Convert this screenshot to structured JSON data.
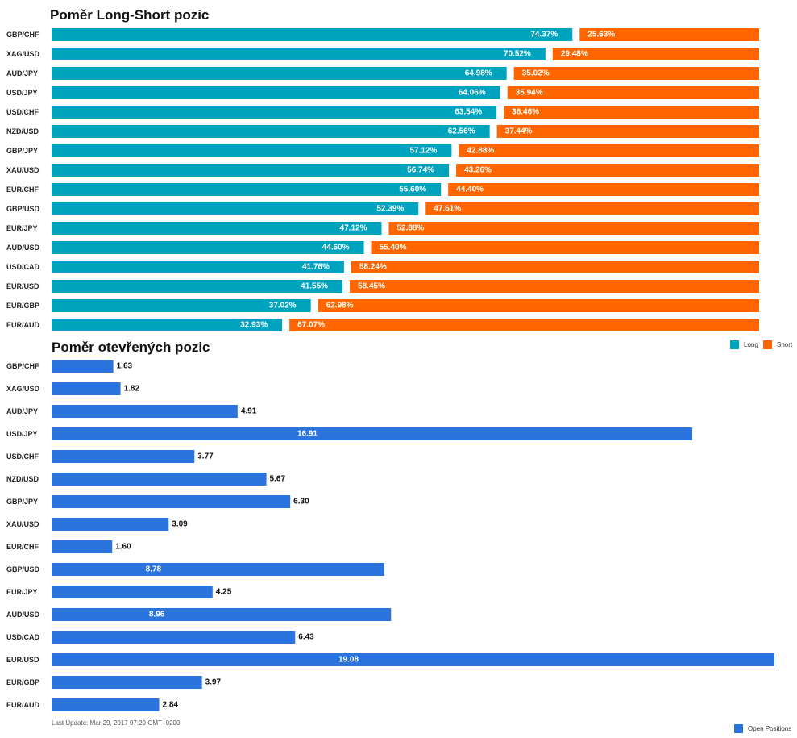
{
  "chart_data": [
    {
      "type": "bar",
      "orientation": "horizontal",
      "stacked": true,
      "title": "Poměr Long-Short pozic",
      "categories": [
        "GBP/CHF",
        "XAG/USD",
        "AUD/JPY",
        "USD/JPY",
        "USD/CHF",
        "NZD/USD",
        "GBP/JPY",
        "XAU/USD",
        "EUR/CHF",
        "GBP/USD",
        "EUR/JPY",
        "AUD/USD",
        "USD/CAD",
        "EUR/USD",
        "EUR/GBP",
        "EUR/AUD"
      ],
      "series": [
        {
          "name": "Long",
          "color": "#00a3bd",
          "values": [
            74.37,
            70.52,
            64.98,
            64.06,
            63.54,
            62.56,
            57.12,
            56.74,
            55.6,
            52.39,
            47.12,
            44.6,
            41.76,
            41.55,
            37.02,
            32.93
          ]
        },
        {
          "name": "Short",
          "color": "#ff6600",
          "values": [
            25.63,
            29.48,
            35.02,
            35.94,
            36.46,
            37.44,
            42.88,
            43.26,
            44.4,
            47.61,
            52.88,
            55.4,
            58.24,
            58.45,
            62.98,
            67.07
          ]
        }
      ],
      "value_suffix": "%",
      "xlim": [
        0,
        100
      ],
      "legend_position": "bottom-right"
    },
    {
      "type": "bar",
      "orientation": "horizontal",
      "title": "Poměr otevřených pozic",
      "categories": [
        "GBP/CHF",
        "XAG/USD",
        "AUD/JPY",
        "USD/JPY",
        "USD/CHF",
        "NZD/USD",
        "GBP/JPY",
        "XAU/USD",
        "EUR/CHF",
        "GBP/USD",
        "EUR/JPY",
        "AUD/USD",
        "USD/CAD",
        "EUR/USD",
        "EUR/GBP",
        "EUR/AUD"
      ],
      "series": [
        {
          "name": "Open Positions",
          "color": "#2b74de",
          "values": [
            1.63,
            1.82,
            4.91,
            16.91,
            3.77,
            5.67,
            6.3,
            3.09,
            1.6,
            8.78,
            4.25,
            8.96,
            6.43,
            19.08,
            3.97,
            2.84
          ]
        }
      ],
      "xlim": [
        0,
        19.08
      ],
      "legend_position": "bottom-right"
    }
  ],
  "footer": {
    "last_update": "Last Update: Mar 29, 2017 07:20 GMT+0200"
  }
}
